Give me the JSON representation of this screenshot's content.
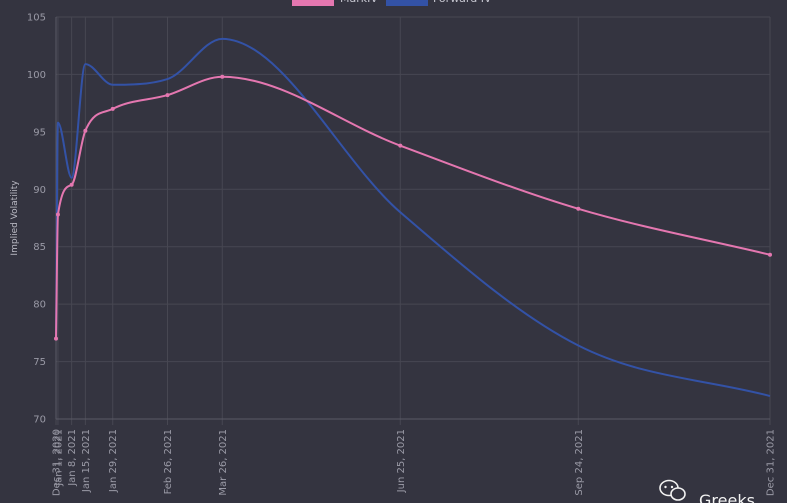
{
  "chart_data": {
    "type": "line",
    "ylabel": "Implied Volatility",
    "ylim": [
      70,
      105
    ],
    "yticks": [
      70,
      75,
      80,
      85,
      90,
      95,
      100,
      105
    ],
    "x_tick_labels": [
      "Dec 31, 2020",
      "Jan 1, 2021",
      "Jan 8, 2021",
      "Jan 15, 2021",
      "Jan 29, 2021",
      "Feb 26, 2021",
      "Mar 26, 2021",
      "Jun 25, 2021",
      "Sep 24, 2021",
      "Dec 31, 2021"
    ],
    "x": [
      "2020-12-31",
      "2021-01-01",
      "2021-01-08",
      "2021-01-15",
      "2021-01-29",
      "2021-02-26",
      "2021-03-26",
      "2021-06-25",
      "2021-09-24",
      "2021-12-31"
    ],
    "grid": true,
    "legend_position": "top",
    "series": [
      {
        "name": "MarkIV",
        "color": "#e477b0",
        "values": [
          77.0,
          87.8,
          90.4,
          95.1,
          97.0,
          98.2,
          99.8,
          93.8,
          88.3,
          84.3
        ]
      },
      {
        "name": "Forward IV",
        "color": "#3352a6",
        "values": [
          77.0,
          95.8,
          91.0,
          100.9,
          99.1,
          99.6,
          103.1,
          88.0,
          76.4,
          72.0
        ]
      }
    ]
  },
  "watermark": {
    "text": "Greeks",
    "icon": "wechat-icon"
  }
}
